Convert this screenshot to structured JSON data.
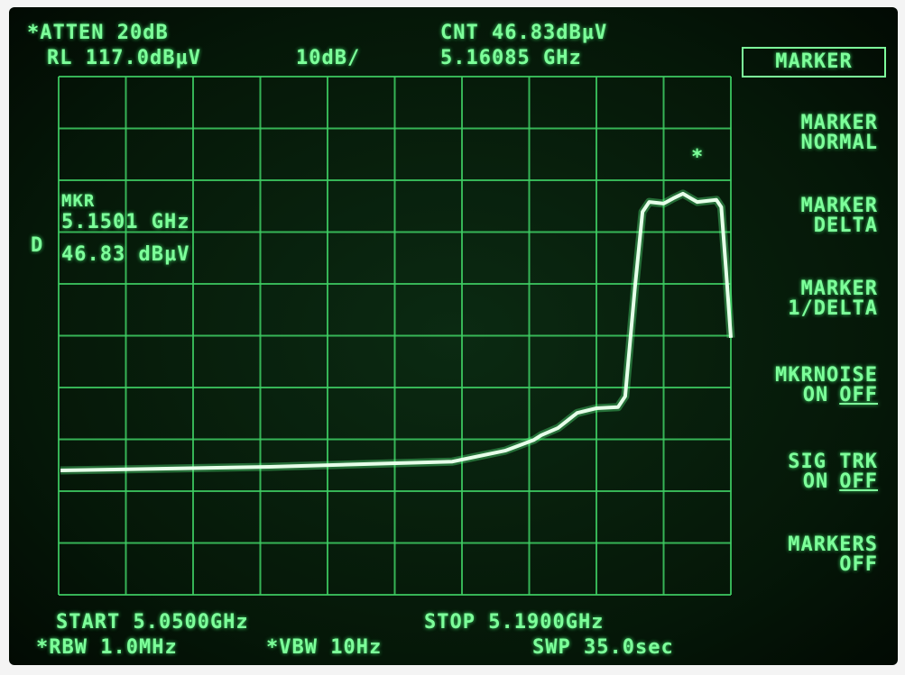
{
  "header": {
    "atten": "*ATTEN 20dB",
    "ref_level": "RL 117.0dBµV",
    "scale": "10dB/",
    "counter": "CNT 46.83dBµV",
    "counter_freq": "5.16085 GHz"
  },
  "marker_readout": {
    "label": "MKR",
    "freq": "5.1501 GHz",
    "level": "46.83 dBµV",
    "mode": "D",
    "symbol": "*"
  },
  "menu": {
    "title": "MARKER",
    "items": [
      {
        "lines": [
          "MARKER",
          "NORMAL"
        ]
      },
      {
        "lines": [
          "MARKER",
          "DELTA"
        ]
      },
      {
        "lines": [
          "MARKER",
          "1/DELTA"
        ]
      },
      {
        "lines": [
          "MKRNOISE"
        ],
        "on": "ON",
        "off": "OFF"
      },
      {
        "lines": [
          "SIG TRK"
        ],
        "on": "ON",
        "off": "OFF"
      },
      {
        "lines": [
          "MARKERS",
          "OFF"
        ]
      }
    ]
  },
  "footer": {
    "start": "START 5.0500GHz",
    "stop": "STOP 5.1900GHz",
    "rbw": "*RBW 1.0MHz",
    "vbw": "*VBW 10Hz",
    "sweep": "SWP 35.0sec"
  },
  "trace": {
    "xlim": [
      5.05,
      5.19
    ],
    "ylim": [
      17,
      117
    ],
    "x": [
      5.0504,
      5.094,
      5.132,
      5.143,
      5.149,
      5.1505,
      5.154,
      5.158,
      5.162,
      5.1665,
      5.168,
      5.17,
      5.1716,
      5.173,
      5.176,
      5.178,
      5.18,
      5.183,
      5.187,
      5.188,
      5.189,
      5.19
    ],
    "y": [
      41.0,
      41.7,
      42.7,
      44.8,
      46.9,
      47.8,
      49.2,
      52.1,
      53.0,
      53.2,
      55.3,
      76.1,
      90.9,
      92.8,
      92.5,
      93.5,
      94.4,
      92.8,
      93.2,
      91.8,
      79.6,
      66.6
    ]
  }
}
